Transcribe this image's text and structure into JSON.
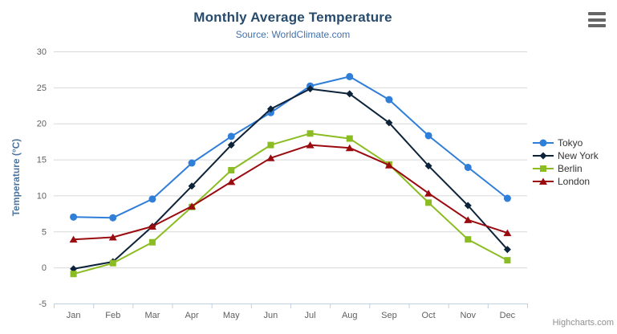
{
  "chart_data": {
    "type": "line",
    "title": "Monthly Average Temperature",
    "subtitle": "Source: WorldClimate.com",
    "categories": [
      "Jan",
      "Feb",
      "Mar",
      "Apr",
      "May",
      "Jun",
      "Jul",
      "Aug",
      "Sep",
      "Oct",
      "Nov",
      "Dec"
    ],
    "xlabel": "",
    "ylabel": "Temperature (°C)",
    "ylim": [
      -5,
      30
    ],
    "yaxis": {
      "title": "Temperature (°C)",
      "min": -5,
      "max": 30,
      "tick_interval": 5
    },
    "grid": true,
    "legend_position": "right",
    "series": [
      {
        "name": "Tokyo",
        "color": "#2f7ed8",
        "marker": "circle",
        "values": [
          7.0,
          6.9,
          9.5,
          14.5,
          18.2,
          21.5,
          25.2,
          26.5,
          23.3,
          18.3,
          13.9,
          9.6
        ]
      },
      {
        "name": "New York",
        "color": "#0d233a",
        "marker": "diamond",
        "values": [
          -0.2,
          0.8,
          5.7,
          11.3,
          17.0,
          22.0,
          24.8,
          24.1,
          20.1,
          14.1,
          8.6,
          2.5
        ]
      },
      {
        "name": "Berlin",
        "color": "#8bbc21",
        "marker": "square",
        "values": [
          -0.9,
          0.6,
          3.5,
          8.4,
          13.5,
          17.0,
          18.6,
          17.9,
          14.3,
          9.0,
          3.9,
          1.0
        ]
      },
      {
        "name": "London",
        "color": "#9a0b10",
        "marker": "triangle",
        "values": [
          3.9,
          4.2,
          5.7,
          8.5,
          11.9,
          15.2,
          17.0,
          16.6,
          14.2,
          10.3,
          6.6,
          4.8
        ]
      }
    ],
    "credits": "Highcharts.com",
    "colors": {
      "title": "#274b6d",
      "subtitle": "#4572a7",
      "axis_labels": "#606060",
      "yaxis_title": "#4d759e",
      "axis_line": "#c0d0e0",
      "gridline": "#d8d8d8",
      "legend_text": "#333333",
      "credits": "#909090",
      "menu_icon": "#666666",
      "background": "#ffffff"
    },
    "icons": {
      "context_menu": "hamburger"
    }
  }
}
